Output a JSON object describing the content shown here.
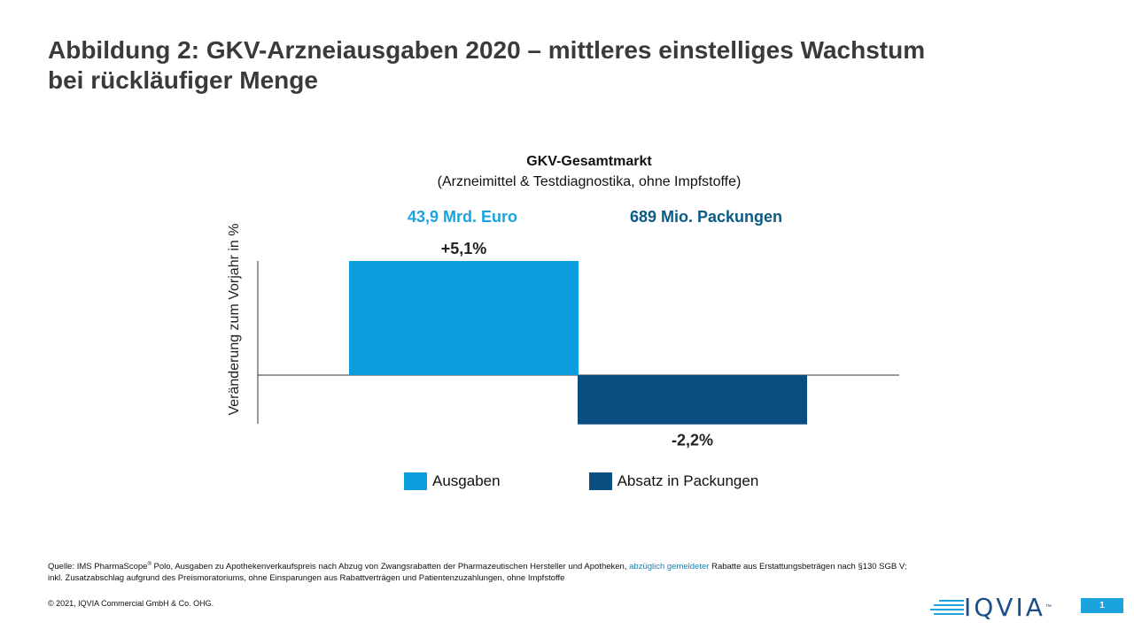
{
  "title_line1": "Abbildung 2: GKV-Arzneiausgaben 2020 – mittleres einstelliges Wachstum",
  "title_line2": "bei rückläufiger Menge",
  "chart_data": {
    "type": "bar",
    "title": "GKV-Gesamtmarkt",
    "subtitle": "(Arzneimittel & Testdiagnostika, ohne Impfstoffe)",
    "ylabel": "Veränderung zum Vorjahr in %",
    "categories": [
      "Ausgaben",
      "Absatz in Packungen"
    ],
    "values": [
      5.1,
      -2.2
    ],
    "value_labels": [
      "+5,1%",
      "-2,2%"
    ],
    "header_labels": [
      "43,9 Mrd. Euro",
      "689 Mio. Packungen"
    ],
    "colors": [
      "#0a9fdc",
      "#0b4f80"
    ],
    "ylim": [
      -2.2,
      5.1
    ],
    "grid": false,
    "legend_position": "bottom"
  },
  "legend": {
    "item1": "Ausgaben",
    "item2": "Absatz in Packungen"
  },
  "source": {
    "prefix": "Quelle: IMS PharmaScope",
    "reg": "®",
    "part1": " Polo, Ausgaben zu Apothekenverkaufspreis nach Abzug von Zwangsrabatten der Pharmazeutischen Hersteller und Apotheken, ",
    "highlight": "abzüglich gemeldeter",
    "part2": " Rabatte aus Erstattungsbeträgen nach §130 SGB V; inkl. Zusatzabschlag aufgrund des Preismoratoriums, ohne Einsparungen aus Rabattverträgen und Patientenzuzahlungen, ohne Impfstoffe"
  },
  "copyright": "© 2021, IQVIA Commercial GmbH & Co. OHG.",
  "logo_text": "IQVIA",
  "logo_tm": "™",
  "page_number": "1"
}
